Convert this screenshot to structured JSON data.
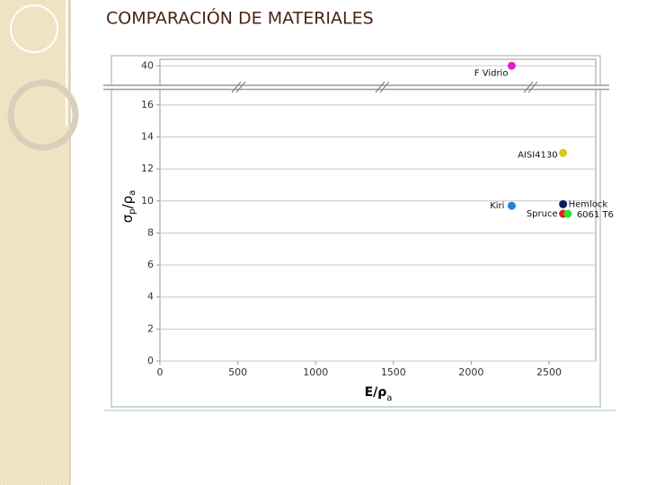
{
  "chart_data": {
    "type": "scatter",
    "title": "COMPARACIÓN DE MATERIALES",
    "xlabel": {
      "text": "E/ρ",
      "subscript": "a"
    },
    "ylabel": [
      {
        "text": "σ",
        "subscript": "p"
      },
      {
        "text": "/ρ",
        "subscript": "a"
      }
    ],
    "xlim": [
      0,
      2800
    ],
    "xticks": [
      0,
      500,
      1000,
      1500,
      2000,
      2500
    ],
    "ylim_segments": [
      [
        0,
        17
      ],
      [
        38.5,
        40.5
      ]
    ],
    "yticks": [
      0,
      2,
      4,
      6,
      8,
      10,
      12,
      14,
      16,
      40
    ],
    "grid": "y",
    "series": [
      {
        "name": "F Vidrio",
        "color": "#e020d0",
        "x": [
          2260
        ],
        "values": [
          40
        ]
      },
      {
        "name": "AISI4130",
        "color": "#d8c820",
        "x": [
          2590
        ],
        "values": [
          13
        ]
      },
      {
        "name": "Kiri",
        "color": "#2a80d8",
        "x": [
          2260
        ],
        "values": [
          9.7
        ]
      },
      {
        "name": "Hemlock",
        "color": "#101860",
        "x": [
          2590
        ],
        "values": [
          9.8
        ]
      },
      {
        "name": "Spruce",
        "color": "#e02020",
        "x": [
          2590
        ],
        "values": [
          9.2
        ]
      },
      {
        "name": "6061 T6",
        "color": "#30e030",
        "x": [
          2620
        ],
        "values": [
          9.2
        ]
      }
    ]
  }
}
